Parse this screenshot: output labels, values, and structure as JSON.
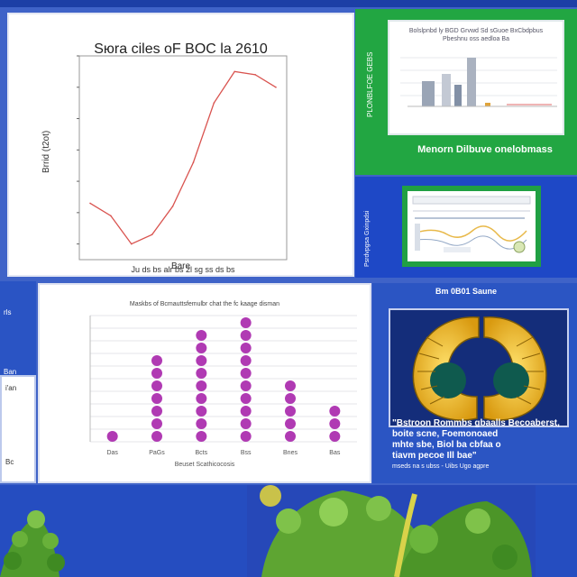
{
  "line_panel": {
    "title": "Sюra ciles oF BOC la 2610",
    "ylabel": "Brrid (t2ot)",
    "xlabel": "Bare",
    "tick_text": "Ju ds bs alr bs 2l sg ss ds bs"
  },
  "chart_data": {
    "type": "line",
    "title": "Sюra ciles oF BOC la 2610",
    "x": [
      1,
      2,
      3,
      4,
      5,
      6,
      7,
      8,
      9,
      10
    ],
    "y": [
      33,
      29,
      20,
      23,
      32,
      46,
      65,
      75,
      74,
      70
    ],
    "ylim": [
      15,
      80
    ],
    "color": "#d9534f",
    "grid": false
  },
  "dot_chart": {
    "title": "Maskbs of Bcmauttsfemulbr chat the fc kaage disman",
    "xlabel": "Beuset Scathicocosis",
    "categories": [
      "Das",
      "PaGs",
      "Bcts",
      "Bss",
      "Bnes",
      "Bas"
    ],
    "counts": [
      1,
      7,
      9,
      10,
      5,
      3
    ],
    "color": "#b03ab3"
  },
  "green_panel": {
    "card_title": "Bolslpnbd ly BGD Grvwd Sd sGuoe BxCbdpbus Pbeshnu oss aedloa Ba",
    "side_text": "PLONBLFOE GEBS",
    "caption": "Menorn Dilbuve onelobmass"
  },
  "blue_panel": {
    "side_text": "Psrdvpgsa Gxinpdsi"
  },
  "left_strip": {
    "top_text": "rls",
    "mid_text": "Ban",
    "card_top": "i'an",
    "card_bottom": "Bc"
  },
  "fungus_panel": {
    "header": "Bm 0B01 Saune",
    "caption_lines": [
      "\"Bstroon Rommbs gbaalls Becoaberst, boite scne, Foemonoaed",
      "mhte sbe, Biol ba cbfaa o",
      "tiavm pecoe Ill bae\"",
      "mseds na s ubss - Uibs Ugo agpre"
    ]
  }
}
